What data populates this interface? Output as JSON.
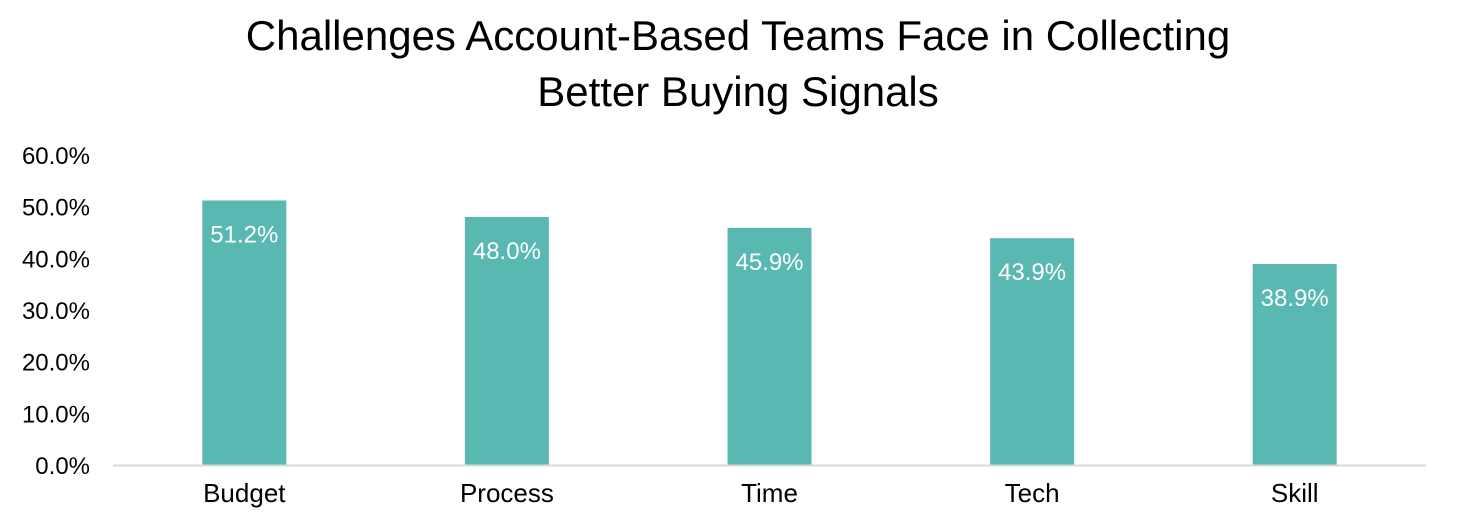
{
  "chart_data": {
    "type": "bar",
    "title_lines": [
      "Challenges Account-Based Teams Face in Collecting",
      "Better Buying Signals"
    ],
    "xlabel": "",
    "ylabel": "",
    "categories": [
      "Budget",
      "Process",
      "Time",
      "Tech",
      "Skill"
    ],
    "values": [
      51.2,
      48.0,
      45.9,
      43.9,
      38.9
    ],
    "data_labels": [
      "51.2%",
      "48.0%",
      "45.9%",
      "43.9%",
      "38.9%"
    ],
    "ylim": [
      0,
      60
    ],
    "yticks": [
      0,
      10,
      20,
      30,
      40,
      50,
      60
    ],
    "ytick_labels": [
      "0.0%",
      "10.0%",
      "20.0%",
      "30.0%",
      "40.0%",
      "50.0%",
      "60.0%"
    ],
    "grid": false,
    "legend": "none",
    "bar_color": "#5AB8B2",
    "axis_color": "#D9D9D9"
  }
}
